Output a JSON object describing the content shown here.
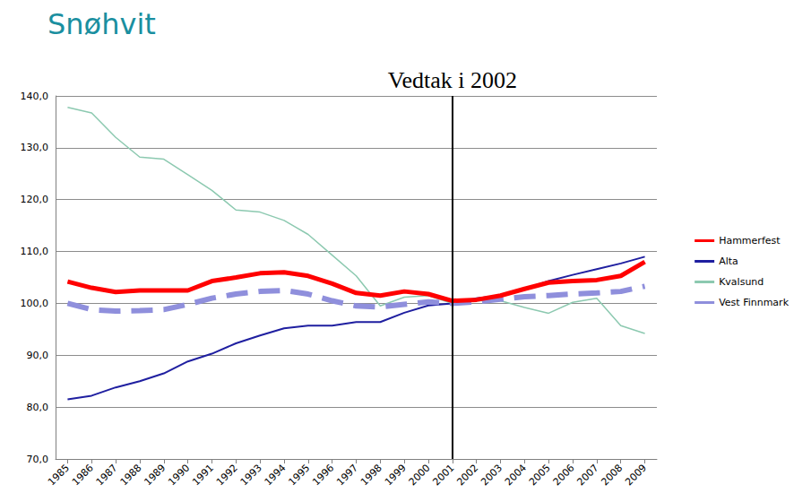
{
  "chart_data": {
    "type": "line",
    "title": "Snøhvit",
    "categories": [
      "1985",
      "1986",
      "1987",
      "1988",
      "1989",
      "1990",
      "1991",
      "1992",
      "1993",
      "1994",
      "1995",
      "1996",
      "1997",
      "1998",
      "1999",
      "2000",
      "2001",
      "2002",
      "2003",
      "2004",
      "2005",
      "2006",
      "2007",
      "2008",
      "2009"
    ],
    "series": [
      {
        "name": "Hammerfest",
        "color": "#ff0000",
        "line_style": "solid",
        "values": [
          104.2,
          103.0,
          102.2,
          102.5,
          102.5,
          102.5,
          104.3,
          105.0,
          105.8,
          106.0,
          105.3,
          103.8,
          102.0,
          101.5,
          102.3,
          101.8,
          100.5,
          100.7,
          101.5,
          102.8,
          104.0,
          104.3,
          104.5,
          105.3,
          108.0
        ]
      },
      {
        "name": "Alta",
        "color": "#1f1fa0",
        "line_style": "solid",
        "values": [
          81.5,
          82.2,
          83.8,
          85.0,
          86.5,
          88.8,
          90.3,
          92.3,
          93.8,
          95.2,
          95.7,
          95.7,
          96.4,
          96.4,
          98.2,
          99.6,
          100.0,
          101.0,
          101.5,
          102.8,
          104.3,
          105.5,
          106.6,
          107.7,
          109.0
        ]
      },
      {
        "name": "Kvalsund",
        "color": "#8cc9b0",
        "line_style": "solid",
        "values": [
          137.8,
          136.7,
          132.0,
          128.2,
          127.8,
          124.8,
          121.8,
          118.0,
          117.6,
          116.0,
          113.3,
          109.3,
          105.3,
          99.5,
          101.2,
          101.5,
          100.0,
          100.5,
          100.5,
          99.2,
          98.1,
          100.2,
          101.0,
          95.7,
          94.2
        ]
      },
      {
        "name": "Vest Finnmark",
        "color": "#8f8fdc",
        "line_style": "dashed",
        "values": [
          100.0,
          98.8,
          98.5,
          98.6,
          98.8,
          99.8,
          101.0,
          101.8,
          102.3,
          102.5,
          101.8,
          100.5,
          99.5,
          99.3,
          99.8,
          100.3,
          100.0,
          100.3,
          100.8,
          101.3,
          101.5,
          101.8,
          102.0,
          102.3,
          103.3
        ]
      }
    ],
    "ylim": [
      70,
      140
    ],
    "yticks": [
      {
        "value": 70,
        "label": "70,0"
      },
      {
        "value": 80,
        "label": "80,0"
      },
      {
        "value": 90,
        "label": "90,0"
      },
      {
        "value": 100,
        "label": "100,0"
      },
      {
        "value": 110,
        "label": "110,0"
      },
      {
        "value": 120,
        "label": "120,0"
      },
      {
        "value": 130,
        "label": "130,0"
      },
      {
        "value": 140,
        "label": "140,0"
      }
    ],
    "annotation": {
      "text": "Vedtak i 2002",
      "x": "2001"
    },
    "grid": true,
    "legend": "right"
  }
}
